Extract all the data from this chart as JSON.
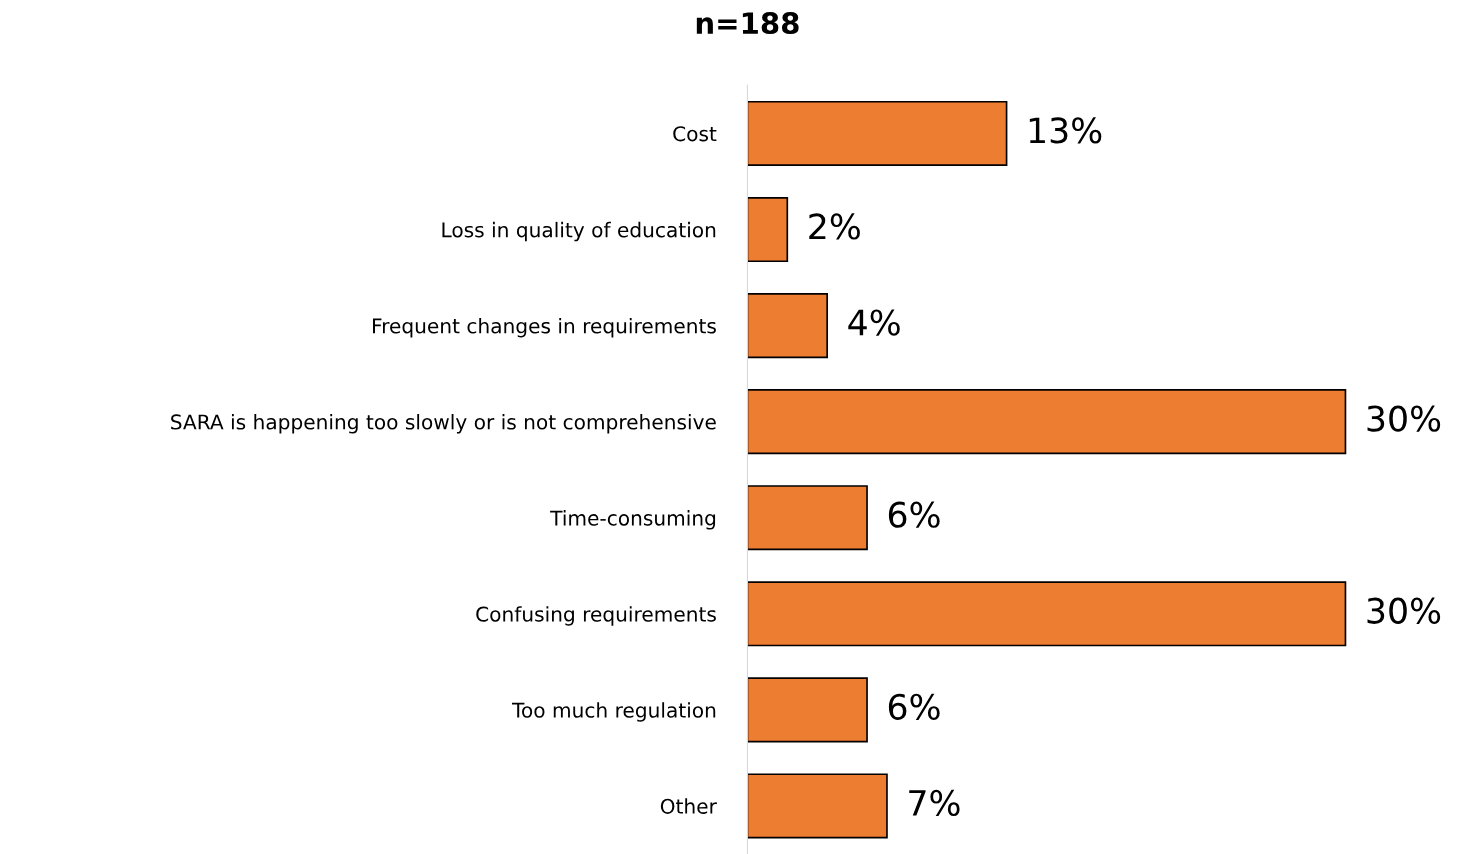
{
  "chart_data": {
    "type": "bar",
    "orientation": "horizontal",
    "title": "n=188",
    "categories": [
      "Cost",
      "Loss in quality of education",
      "Frequent changes in requirements",
      "SARA is happening too slowly or is not comprehensive",
      "Time-consuming",
      "Confusing requirements",
      "Too much regulation",
      "Other"
    ],
    "values": [
      13,
      2,
      4,
      30,
      6,
      30,
      6,
      7
    ],
    "value_labels": [
      "13%",
      "2%",
      "4%",
      "30%",
      "6%",
      "30%",
      "6%",
      "7%"
    ],
    "color": "#ed7d31",
    "grid": false,
    "legend": false
  }
}
